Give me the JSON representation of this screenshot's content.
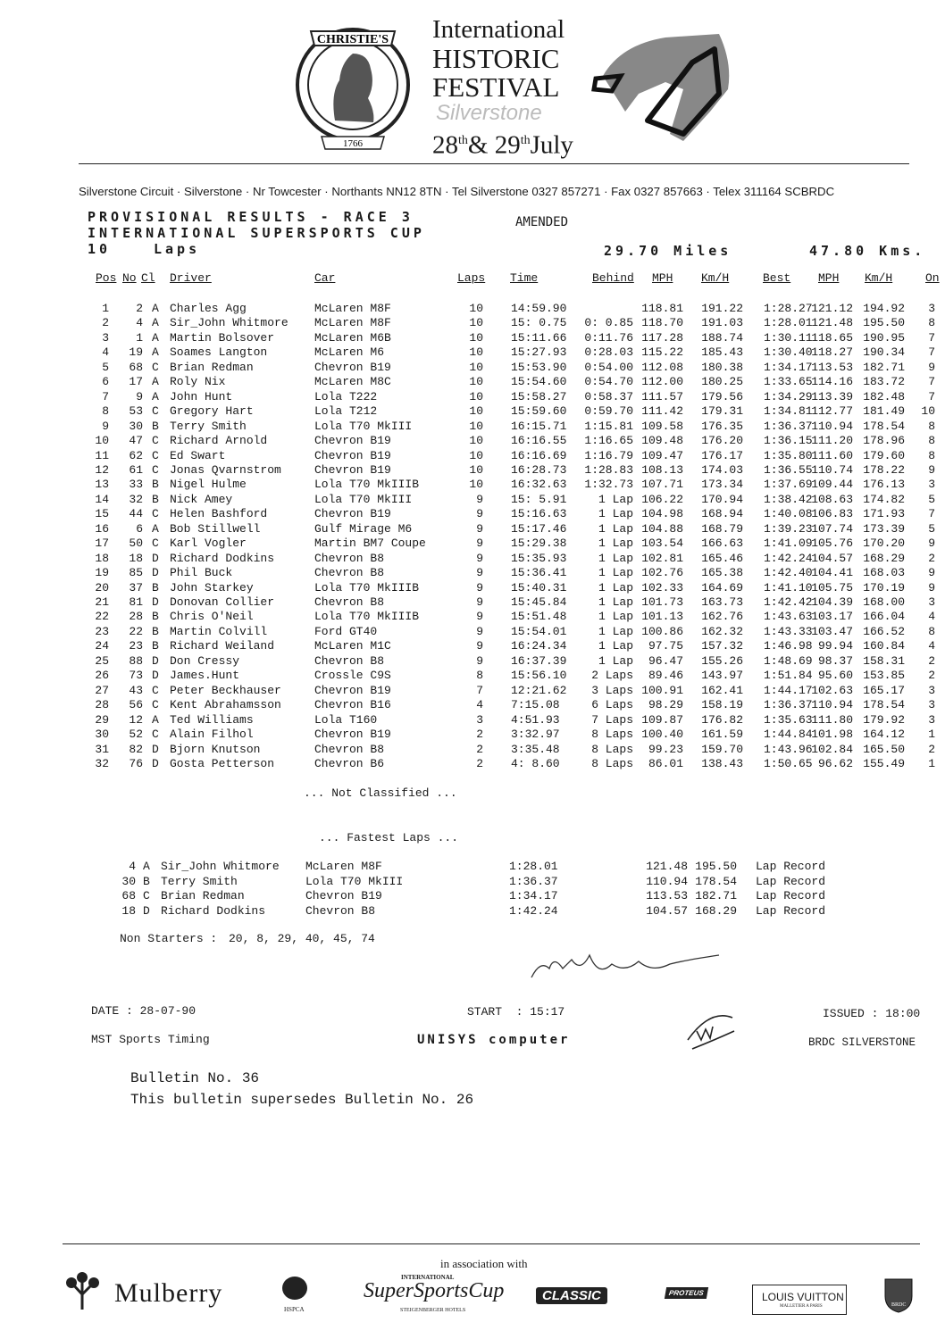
{
  "header": {
    "logo_top": "CHRISTIE'S",
    "logo_year": "1766",
    "title_lines": [
      "International",
      "HISTORIC",
      "FESTIVAL"
    ],
    "venue": "Silverstone",
    "date_day1": "28",
    "date_sup1": "th",
    "date_amp": "&",
    "date_day2": "29",
    "date_sup2": "th",
    "date_month": "July",
    "address": "Silverstone Circuit · Silverstone · Nr Towcester · Northants NN12 8TN · Tel Silverstone 0327 857271 · Fax 0327 857663 · Telex 311164 SCBRDC"
  },
  "results": {
    "title": "PROVISIONAL RESULTS - RACE 3",
    "status": "AMENDED",
    "series": "INTERNATIONAL SUPERSPORTS CUP",
    "laps_count": "10",
    "laps_word": "Laps",
    "miles": "29.70 Miles",
    "kms": "47.80 Kms.",
    "columns": [
      "Pos",
      "No",
      "Cl",
      "Driver",
      "Car",
      "Laps",
      "Time",
      "Behind",
      "MPH",
      "Km/H",
      "Best",
      "MPH",
      "Km/H",
      "On"
    ],
    "rows": [
      [
        "1",
        "2",
        "A",
        "Charles Agg",
        "McLaren M8F",
        "10",
        "14:59.90",
        null,
        "118.81",
        "191.22",
        "1:28.27",
        "121.12",
        "194.92",
        "3"
      ],
      [
        "2",
        "4",
        "A",
        "Sir_John Whitmore",
        "McLaren M8F",
        "10",
        "15: 0.75",
        "0: 0.85",
        "118.70",
        "191.03",
        "1:28.01",
        "121.48",
        "195.50",
        "8"
      ],
      [
        "3",
        "1",
        "A",
        "Martin Bolsover",
        "McLaren M6B",
        "10",
        "15:11.66",
        "0:11.76",
        "117.28",
        "188.74",
        "1:30.11",
        "118.65",
        "190.95",
        "7"
      ],
      [
        "4",
        "19",
        "A",
        "Soames Langton",
        "McLaren M6",
        "10",
        "15:27.93",
        "0:28.03",
        "115.22",
        "185.43",
        "1:30.40",
        "118.27",
        "190.34",
        "7"
      ],
      [
        "5",
        "68",
        "C",
        "Brian Redman",
        "Chevron B19",
        "10",
        "15:53.90",
        "0:54.00",
        "112.08",
        "180.38",
        "1:34.17",
        "113.53",
        "182.71",
        "9"
      ],
      [
        "6",
        "17",
        "A",
        "Roly Nix",
        "McLaren M8C",
        "10",
        "15:54.60",
        "0:54.70",
        "112.00",
        "180.25",
        "1:33.65",
        "114.16",
        "183.72",
        "7"
      ],
      [
        "7",
        "9",
        "A",
        "John Hunt",
        "Lola T222",
        "10",
        "15:58.27",
        "0:58.37",
        "111.57",
        "179.56",
        "1:34.29",
        "113.39",
        "182.48",
        "7"
      ],
      [
        "8",
        "53",
        "C",
        "Gregory Hart",
        "Lola T212",
        "10",
        "15:59.60",
        "0:59.70",
        "111.42",
        "179.31",
        "1:34.81",
        "112.77",
        "181.49",
        "10"
      ],
      [
        "9",
        "30",
        "B",
        "Terry Smith",
        "Lola T70 MkIII",
        "10",
        "16:15.71",
        "1:15.81",
        "109.58",
        "176.35",
        "1:36.37",
        "110.94",
        "178.54",
        "8"
      ],
      [
        "10",
        "47",
        "C",
        "Richard Arnold",
        "Chevron B19",
        "10",
        "16:16.55",
        "1:16.65",
        "109.48",
        "176.20",
        "1:36.15",
        "111.20",
        "178.96",
        "8"
      ],
      [
        "11",
        "62",
        "C",
        "Ed Swart",
        "Chevron B19",
        "10",
        "16:16.69",
        "1:16.79",
        "109.47",
        "176.17",
        "1:35.80",
        "111.60",
        "179.60",
        "8"
      ],
      [
        "12",
        "61",
        "C",
        "Jonas Qvarnstrom",
        "Chevron B19",
        "10",
        "16:28.73",
        "1:28.83",
        "108.13",
        "174.03",
        "1:36.55",
        "110.74",
        "178.22",
        "9"
      ],
      [
        "13",
        "33",
        "B",
        "Nigel Hulme",
        "Lola T70 MkIIIB",
        "10",
        "16:32.63",
        "1:32.73",
        "107.71",
        "173.34",
        "1:37.69",
        "109.44",
        "176.13",
        "3"
      ],
      [
        "14",
        "32",
        "B",
        "Nick Amey",
        "Lola T70 MkIII",
        "9",
        "15: 5.91",
        "1 Lap",
        "106.22",
        "170.94",
        "1:38.42",
        "108.63",
        "174.82",
        "5"
      ],
      [
        "15",
        "44",
        "C",
        "Helen Bashford",
        "Chevron B19",
        "9",
        "15:16.63",
        "1 Lap",
        "104.98",
        "168.94",
        "1:40.08",
        "106.83",
        "171.93",
        "7"
      ],
      [
        "16",
        "6",
        "A",
        "Bob Stillwell",
        "Gulf Mirage M6",
        "9",
        "15:17.46",
        "1 Lap",
        "104.88",
        "168.79",
        "1:39.23",
        "107.74",
        "173.39",
        "5"
      ],
      [
        "17",
        "50",
        "C",
        "Karl Vogler",
        "Martin BM7 Coupe",
        "9",
        "15:29.38",
        "1 Lap",
        "103.54",
        "166.63",
        "1:41.09",
        "105.76",
        "170.20",
        "9"
      ],
      [
        "18",
        "18",
        "D",
        "Richard Dodkins",
        "Chevron B8",
        "9",
        "15:35.93",
        "1 Lap",
        "102.81",
        "165.46",
        "1:42.24",
        "104.57",
        "168.29",
        "2"
      ],
      [
        "19",
        "85",
        "D",
        "Phil Buck",
        "Chevron B8",
        "9",
        "15:36.41",
        "1 Lap",
        "102.76",
        "165.38",
        "1:42.40",
        "104.41",
        "168.03",
        "9"
      ],
      [
        "20",
        "37",
        "B",
        "John Starkey",
        "Lola T70 MkIIIB",
        "9",
        "15:40.31",
        "1 Lap",
        "102.33",
        "164.69",
        "1:41.10",
        "105.75",
        "170.19",
        "9"
      ],
      [
        "21",
        "81",
        "D",
        "Donovan Collier",
        "Chevron B8",
        "9",
        "15:45.84",
        "1 Lap",
        "101.73",
        "163.73",
        "1:42.42",
        "104.39",
        "168.00",
        "3"
      ],
      [
        "22",
        "28",
        "B",
        "Chris O'Neil",
        "Lola T70 MkIIIB",
        "9",
        "15:51.48",
        "1 Lap",
        "101.13",
        "162.76",
        "1:43.63",
        "103.17",
        "166.04",
        "4"
      ],
      [
        "23",
        "22",
        "B",
        "Martin Colvill",
        "Ford GT40",
        "9",
        "15:54.01",
        "1 Lap",
        "100.86",
        "162.32",
        "1:43.33",
        "103.47",
        "166.52",
        "8"
      ],
      [
        "24",
        "23",
        "B",
        "Richard Weiland",
        "McLaren M1C",
        "9",
        "16:24.34",
        "1 Lap",
        "97.75",
        "157.32",
        "1:46.98",
        "99.94",
        "160.84",
        "4"
      ],
      [
        "25",
        "88",
        "D",
        "Don Cressy",
        "Chevron B8",
        "9",
        "16:37.39",
        "1 Lap",
        "96.47",
        "155.26",
        "1:48.69",
        "98.37",
        "158.31",
        "2"
      ],
      [
        "26",
        "73",
        "D",
        "James.Hunt",
        "Crossle C9S",
        "8",
        "15:56.10",
        "2 Laps",
        "89.46",
        "143.97",
        "1:51.84",
        "95.60",
        "153.85",
        "2"
      ],
      [
        "27",
        "43",
        "C",
        "Peter Beckhauser",
        "Chevron B19",
        "7",
        "12:21.62",
        "3 Laps",
        "100.91",
        "162.41",
        "1:44.17",
        "102.63",
        "165.17",
        "3"
      ],
      [
        "28",
        "56",
        "C",
        "Kent Abrahamsson",
        "Chevron B16",
        "4",
        "7:15.08",
        "6 Laps",
        "98.29",
        "158.19",
        "1:36.37",
        "110.94",
        "178.54",
        "3"
      ],
      [
        "29",
        "12",
        "A",
        "Ted Williams",
        "Lola T160",
        "3",
        "4:51.93",
        "7 Laps",
        "109.87",
        "176.82",
        "1:35.63",
        "111.80",
        "179.92",
        "3"
      ],
      [
        "30",
        "52",
        "C",
        "Alain Filhol",
        "Chevron B19",
        "2",
        "3:32.97",
        "8 Laps",
        "100.40",
        "161.59",
        "1:44.84",
        "101.98",
        "164.12",
        "1"
      ],
      [
        "31",
        "82",
        "D",
        "Bjorn Knutson",
        "Chevron B8",
        "2",
        "3:35.48",
        "8 Laps",
        "99.23",
        "159.70",
        "1:43.96",
        "102.84",
        "165.50",
        "2"
      ],
      [
        "32",
        "76",
        "D",
        "Gosta Petterson",
        "Chevron B6",
        "2",
        "4: 8.60",
        "8 Laps",
        "86.01",
        "138.43",
        "1:50.65",
        "96.62",
        "155.49",
        "1"
      ]
    ],
    "not_classified": "... Not Classified ...",
    "fastest_title": "... Fastest Laps ...",
    "fastest": [
      [
        "4",
        "A",
        "Sir_John Whitmore",
        "McLaren M8F",
        "1:28.01",
        "121.48",
        "195.50",
        "Lap Record"
      ],
      [
        "30",
        "B",
        "Terry Smith",
        "Lola T70 MkIII",
        "1:36.37",
        "110.94",
        "178.54",
        "Lap Record"
      ],
      [
        "68",
        "C",
        "Brian Redman",
        "Chevron B19",
        "1:34.17",
        "113.53",
        "182.71",
        "Lap Record"
      ],
      [
        "18",
        "D",
        "Richard Dodkins",
        "Chevron B8",
        "1:42.24",
        "104.57",
        "168.29",
        "Lap Record"
      ]
    ],
    "non_starters_label": "Non Starters :",
    "non_starters": "20, 8, 29, 40, 45, 74"
  },
  "footer": {
    "date": "DATE : 28-07-90",
    "start": "START  : 15:17",
    "issued": "ISSUED : 18:00",
    "timing": "MST Sports Timing",
    "computer": "UNISYS computer",
    "brdc": "BRDC SILVERSTONE",
    "bulletin": "Bulletin No. 36",
    "supersedes": "This bulletin supersedes Bulletin No. 26"
  },
  "sponsors": {
    "intro": "in association with",
    "mulberry": "Mulberry",
    "hspca": "HSPCA",
    "ssc_top": "INTERNATIONAL",
    "ssc": "SuperSportsCup",
    "ssc_bottom": "STEIGENBERGER HOTELS",
    "classic": "CLASSIC",
    "proteus": "PROTEUS",
    "lv": "LOUIS VUITTON",
    "lv_sub": "MALLETIER A PARIS",
    "brdc": "BRDC"
  }
}
